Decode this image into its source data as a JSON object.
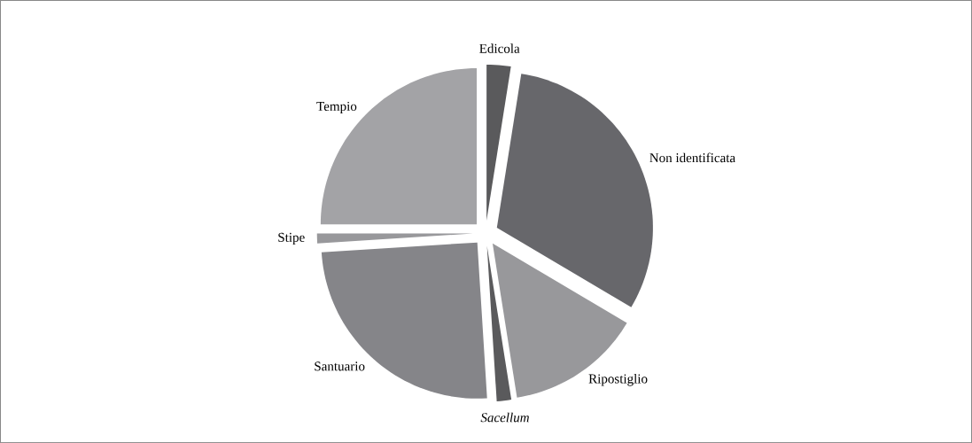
{
  "chart_data": {
    "type": "pie",
    "categories": [
      "Edicola",
      "Non identificata",
      "Ripostiglio",
      "*Sacellum*",
      "Santuario",
      "Stipe",
      "Tempio"
    ],
    "values": [
      2.5,
      31,
      14,
      1.5,
      25,
      1,
      25
    ],
    "colors": [
      "#5a5a5c",
      "#67676b",
      "#98989b",
      "#5a5a5c",
      "#858589",
      "#98989b",
      "#a3a3a6"
    ]
  }
}
